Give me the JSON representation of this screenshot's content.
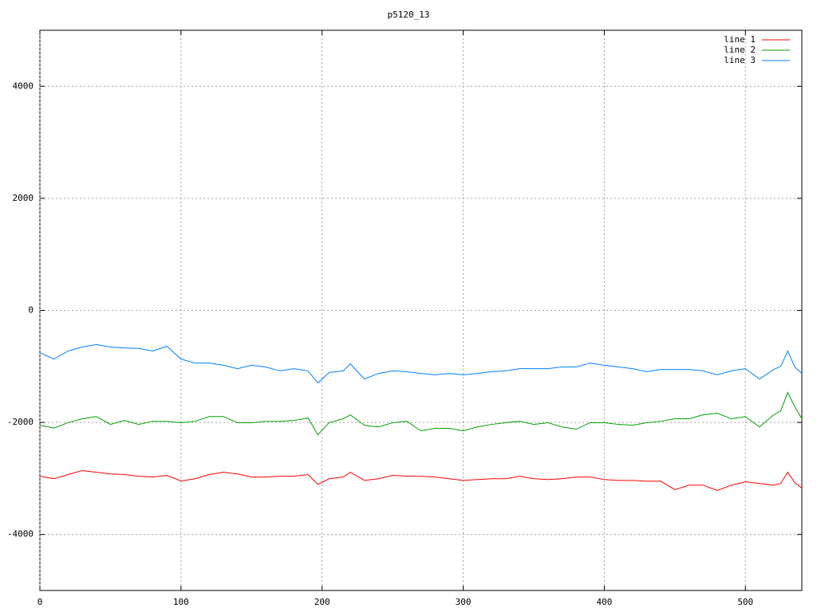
{
  "chart_data": {
    "type": "line",
    "title": "p5120_13",
    "x": [
      0,
      10,
      20,
      30,
      40,
      50,
      60,
      70,
      80,
      90,
      100,
      110,
      120,
      130,
      140,
      150,
      160,
      170,
      180,
      190,
      197,
      205,
      215,
      220,
      230,
      240,
      250,
      260,
      270,
      280,
      290,
      300,
      310,
      320,
      330,
      340,
      350,
      360,
      370,
      380,
      390,
      400,
      410,
      420,
      430,
      440,
      450,
      460,
      470,
      480,
      490,
      500,
      510,
      520,
      525,
      530,
      535,
      540
    ],
    "series": [
      {
        "name": "line 1",
        "color": "#ff0000",
        "values": [
          -2960,
          -3005,
          -2930,
          -2860,
          -2890,
          -2920,
          -2930,
          -2960,
          -2975,
          -2945,
          -3045,
          -3005,
          -2930,
          -2890,
          -2920,
          -2975,
          -2975,
          -2960,
          -2960,
          -2930,
          -3105,
          -3005,
          -2975,
          -2890,
          -3035,
          -3005,
          -2945,
          -2960,
          -2960,
          -2975,
          -3005,
          -3035,
          -3020,
          -3005,
          -3005,
          -2960,
          -3005,
          -3020,
          -3005,
          -2975,
          -2975,
          -3020,
          -3035,
          -3035,
          -3050,
          -3050,
          -3200,
          -3120,
          -3120,
          -3215,
          -3120,
          -3060,
          -3090,
          -3120,
          -3090,
          -2890,
          -3075,
          -3175
        ]
      },
      {
        "name": "line 2",
        "color": "#00a000",
        "values": [
          -2050,
          -2100,
          -2005,
          -1935,
          -1895,
          -2035,
          -1965,
          -2035,
          -1980,
          -1980,
          -2005,
          -1980,
          -1895,
          -1895,
          -2005,
          -2005,
          -1980,
          -1980,
          -1965,
          -1920,
          -2220,
          -2005,
          -1935,
          -1865,
          -2050,
          -2080,
          -2005,
          -1980,
          -2150,
          -2105,
          -2105,
          -2150,
          -2080,
          -2035,
          -2005,
          -1980,
          -2035,
          -2005,
          -2080,
          -2120,
          -2005,
          -2005,
          -2035,
          -2050,
          -2005,
          -1980,
          -1935,
          -1935,
          -1865,
          -1835,
          -1935,
          -1895,
          -2080,
          -1865,
          -1795,
          -1465,
          -1720,
          -1935
        ]
      },
      {
        "name": "line 3",
        "color": "#0080ff",
        "values": [
          -755,
          -870,
          -725,
          -655,
          -610,
          -655,
          -670,
          -680,
          -725,
          -640,
          -870,
          -940,
          -940,
          -980,
          -1040,
          -980,
          -1010,
          -1080,
          -1040,
          -1080,
          -1295,
          -1110,
          -1080,
          -955,
          -1225,
          -1125,
          -1080,
          -1095,
          -1125,
          -1150,
          -1125,
          -1150,
          -1125,
          -1095,
          -1080,
          -1040,
          -1040,
          -1040,
          -1010,
          -1010,
          -940,
          -980,
          -1010,
          -1040,
          -1095,
          -1055,
          -1055,
          -1055,
          -1080,
          -1150,
          -1080,
          -1040,
          -1225,
          -1055,
          -1000,
          -725,
          -1010,
          -1125
        ]
      }
    ],
    "xlim": [
      0,
      540
    ],
    "xticks": [
      0,
      100,
      200,
      300,
      400,
      500
    ],
    "ylim": [
      -5000,
      5000
    ],
    "yticks": [
      -4000,
      -2000,
      0,
      2000,
      4000
    ],
    "grid": true,
    "legend": "top-right"
  }
}
